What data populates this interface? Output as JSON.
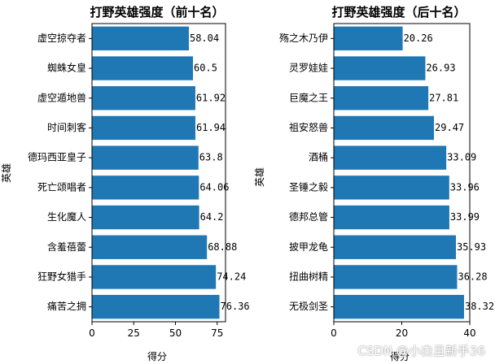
{
  "chart_data": [
    {
      "type": "bar",
      "orientation": "horizontal",
      "title": "打野英雄强度（前十名）",
      "xlabel": "得分",
      "ylabel": "英雄",
      "categories": [
        "虚空掠夺者",
        "蜘蛛女皇",
        "虚空遁地兽",
        "时间刺客",
        "德玛西亚皇子",
        "死亡颂唱者",
        "生化魔人",
        "含羞蓓蕾",
        "狂野女猎手",
        "痛苦之拥"
      ],
      "values": [
        58.04,
        60.5,
        61.92,
        61.94,
        63.8,
        64.06,
        64.2,
        68.88,
        74.24,
        76.36
      ],
      "value_labels": [
        "58.04",
        "60.5",
        "61.92",
        "61.94",
        "63.8",
        "64.06",
        "64.2",
        "68.88",
        "74.24",
        "76.36"
      ],
      "xlim": [
        0,
        80
      ],
      "xticks": [
        0,
        25,
        50,
        75
      ],
      "bar_color": "#1f77b4"
    },
    {
      "type": "bar",
      "orientation": "horizontal",
      "title": "打野英雄强度（后十名）",
      "xlabel": "得分",
      "ylabel": "英雄",
      "categories": [
        "殇之木乃伊",
        "灵罗娃娃",
        "巨魔之王",
        "祖安怒兽",
        "酒桶",
        "圣锤之毅",
        "德邦总管",
        "披甲龙龟",
        "扭曲树精",
        "无极剑圣"
      ],
      "values": [
        20.26,
        26.93,
        27.81,
        29.47,
        33.09,
        33.96,
        33.99,
        35.93,
        36.28,
        38.32
      ],
      "value_labels": [
        "20.26",
        "26.93",
        "27.81",
        "29.47",
        "33.09",
        "33.96",
        "33.99",
        "35.93",
        "36.28",
        "38.32"
      ],
      "xlim": [
        0,
        40
      ],
      "xticks": [
        0,
        20,
        40
      ],
      "bar_color": "#1f77b4"
    }
  ],
  "watermark": "CSDN @小白且新手36"
}
